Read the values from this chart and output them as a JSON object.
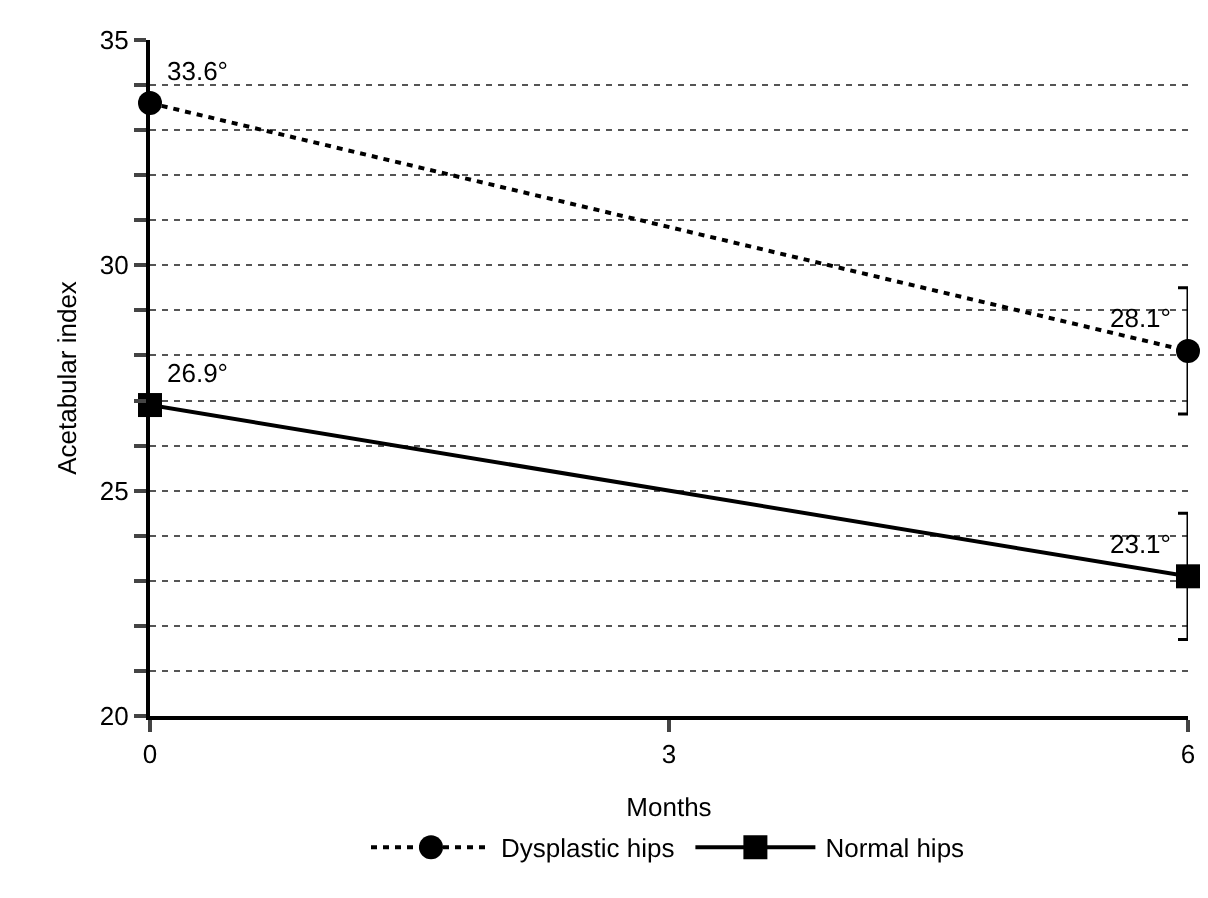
{
  "chart_data": {
    "type": "line",
    "xlabel": "Months",
    "ylabel": "Acetabular index",
    "x": [
      0,
      6
    ],
    "series": [
      {
        "name": "Dysplastic hips",
        "color": "#000000",
        "values": [
          33.6,
          28.1
        ],
        "errors": [
          null,
          1.4
        ],
        "value_labels": [
          "33.6°",
          "28.1°"
        ],
        "marker": "circle",
        "line_style": "dotted"
      },
      {
        "name": "Normal hips",
        "color": "#000000",
        "values": [
          26.9,
          23.1
        ],
        "errors": [
          null,
          1.4
        ],
        "value_labels": [
          "26.9°",
          "23.1°"
        ],
        "marker": "square",
        "line_style": "solid"
      }
    ],
    "xlim": [
      0,
      6
    ],
    "xticks": [
      0,
      3,
      6
    ],
    "ylim": [
      20,
      35
    ],
    "yticks": [
      20,
      {
        "value": 21,
        "label": null
      },
      {
        "value": 22,
        "label": null
      },
      {
        "value": 23,
        "label": null
      },
      {
        "value": 24,
        "label": null
      },
      25,
      {
        "value": 26,
        "label": null
      },
      {
        "value": 27,
        "label": null
      },
      {
        "value": 28,
        "label": null
      },
      {
        "value": 29,
        "label": null
      },
      30,
      {
        "value": 31,
        "label": null
      },
      {
        "value": 32,
        "label": null
      },
      {
        "value": 33,
        "label": null
      },
      {
        "value": 34,
        "label": null
      },
      35
    ],
    "grid": "y",
    "legend": "bottom"
  }
}
